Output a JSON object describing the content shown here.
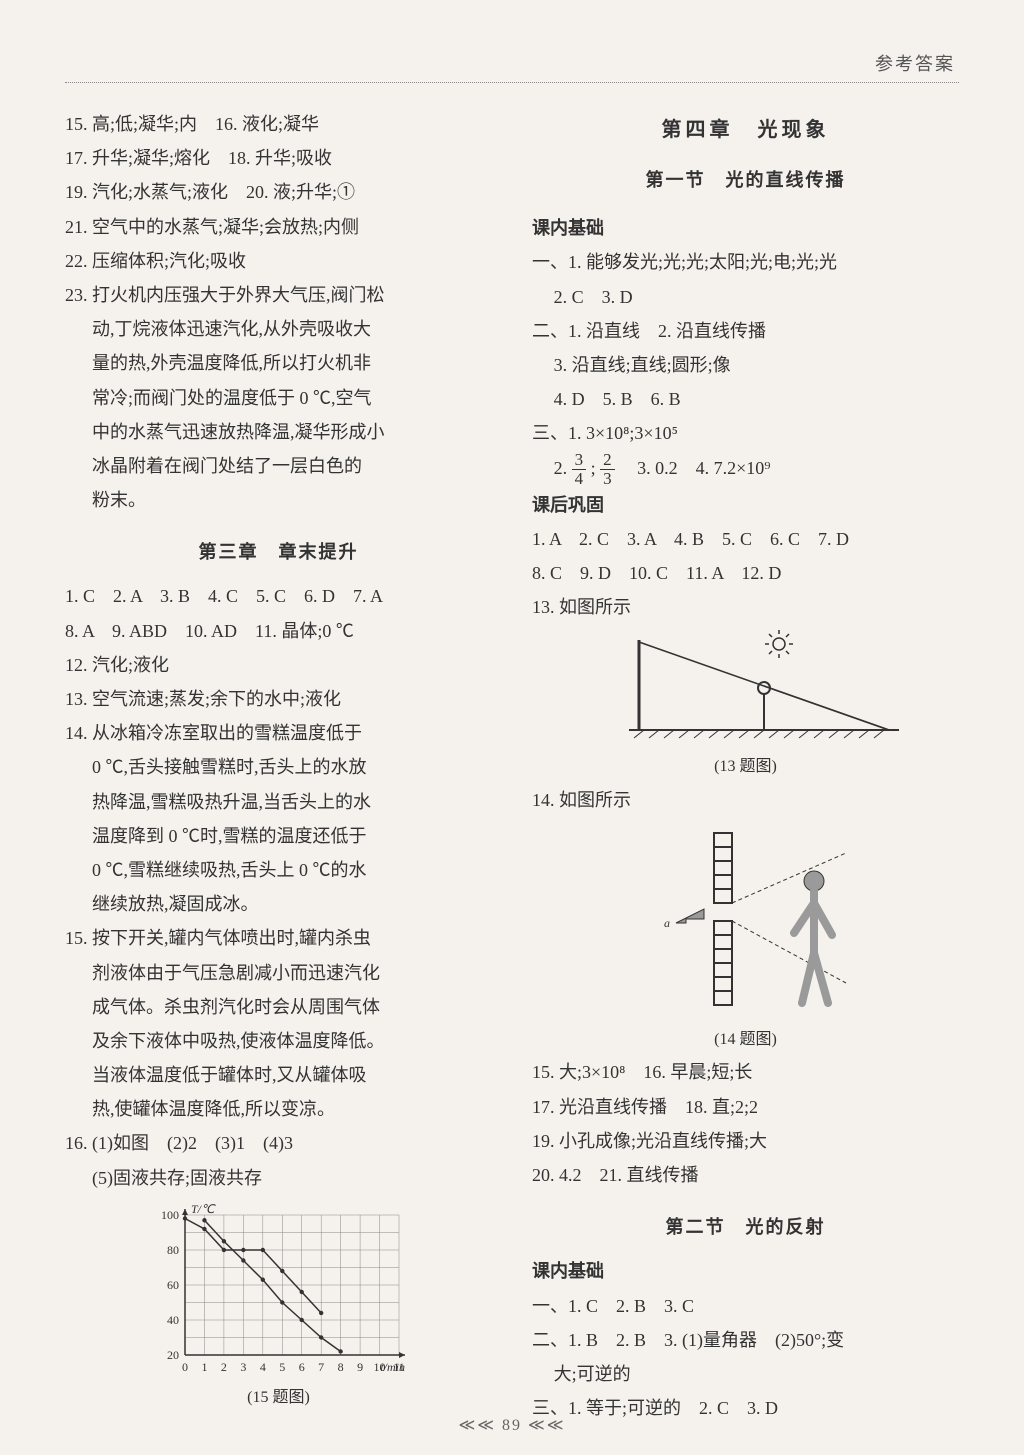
{
  "header": {
    "title": "参考答案"
  },
  "left": {
    "l15": "15. 高;低;凝华;内　16. 液化;凝华",
    "l17": "17. 升华;凝华;熔化　18. 升华;吸收",
    "l19": "19. 汽化;水蒸气;液化　20. 液;升华;①",
    "l21": "21. 空气中的水蒸气;凝华;会放热;内侧",
    "l22": "22. 压缩体积;汽化;吸收",
    "l23a": "23. 打火机内压强大于外界大气压,阀门松",
    "l23b": "动,丁烷液体迅速汽化,从外壳吸收大",
    "l23c": "量的热,外壳温度降低,所以打火机非",
    "l23d": "常冷;而阀门处的温度低于 0 ℃,空气",
    "l23e": "中的水蒸气迅速放热降温,凝华形成小",
    "l23f": "冰晶附着在阀门处结了一层白色的",
    "l23g": "粉末。",
    "sec3_title": "第三章　章末提升",
    "s3_1": "1. C　2. A　3. B　4. C　5. C　6. D　7. A",
    "s3_2": "8. A　9. ABD　10. AD　11. 晶体;0 ℃",
    "s3_12": "12. 汽化;液化",
    "s3_13": "13. 空气流速;蒸发;余下的水中;液化",
    "s3_14a": "14. 从冰箱冷冻室取出的雪糕温度低于",
    "s3_14b": "0 ℃,舌头接触雪糕时,舌头上的水放",
    "s3_14c": "热降温,雪糕吸热升温,当舌头上的水",
    "s3_14d": "温度降到 0 ℃时,雪糕的温度还低于",
    "s3_14e": "0 ℃,雪糕继续吸热,舌头上 0 ℃的水",
    "s3_14f": "继续放热,凝固成冰。",
    "s3_15a": "15. 按下开关,罐内气体喷出时,罐内杀虫",
    "s3_15b": "剂液体由于气压急剧减小而迅速汽化",
    "s3_15c": "成气体。杀虫剂汽化时会从周围气体",
    "s3_15d": "及余下液体中吸热,使液体温度降低。",
    "s3_15e": "当液体温度低于罐体时,又从罐体吸",
    "s3_15f": "热,使罐体温度降低,所以变凉。",
    "s3_16a": "16. (1)如图　(2)2　(3)1　(4)3",
    "s3_16b": "(5)固液共存;固液共存",
    "fig15_caption": "(15 题图)",
    "chart": {
      "y_label": "T/℃",
      "x_label": "t/min",
      "y_ticks": [
        20,
        40,
        60,
        80,
        100
      ],
      "x_ticks": [
        0,
        1,
        2,
        3,
        4,
        5,
        6,
        7,
        8,
        9,
        10,
        11
      ],
      "series_a": [
        [
          0,
          98
        ],
        [
          1,
          92
        ],
        [
          2,
          80
        ],
        [
          3,
          80
        ],
        [
          4,
          80
        ],
        [
          5,
          68
        ],
        [
          6,
          56
        ],
        [
          7,
          44
        ]
      ],
      "series_b": [
        [
          1,
          97
        ],
        [
          2,
          85
        ],
        [
          3,
          74
        ],
        [
          4,
          63
        ],
        [
          5,
          50
        ],
        [
          6,
          40
        ],
        [
          7,
          30
        ],
        [
          8,
          22
        ]
      ],
      "axis_color": "#333",
      "grid_color": "#888",
      "bg_color": "#f5f2ed",
      "line_color": "#333",
      "marker_radius": 2.2,
      "font_size": 12
    }
  },
  "right": {
    "chapter": "第四章　光现象",
    "sec1_title": "第一节　光的直线传播",
    "kenei": "课内基础",
    "r1a": "一、1. 能够发光;光;光;太阳;光;电;光;光",
    "r1b": "2. C　3. D",
    "r2a": "二、1. 沿直线　2. 沿直线传播",
    "r2b": "3. 沿直线;直线;圆形;像",
    "r2c": "4. D　5. B　6. B",
    "r3a": "三、1. 3×10⁸;3×10⁵",
    "r3b_pre": "2. ",
    "r3b_mid": ";",
    "r3b_post": "　3. 0.2　4. 7.2×10⁹",
    "kehou": "课后巩固",
    "k1": "1. A　2. C　3. A　4. B　5. C　6. C　7. D",
    "k2": "8. C　9. D　10. C　11. A　12. D",
    "k13": "13. 如图所示",
    "fig13_caption": "(13 题图)",
    "k14": "14. 如图所示",
    "fig14_caption": "(14 题图)",
    "k15": "15. 大;3×10⁸　16. 早晨;短;长",
    "k17": "17. 光沿直线传播　18. 直;2;2",
    "k19": "19. 小孔成像;光沿直线传播;大",
    "k20": "20. 4.2　21. 直线传播",
    "sec2_title": "第二节　光的反射",
    "kenei2": "课内基础",
    "s2_1": "一、1. C　2. B　3. C",
    "s2_2": "二、1. B　2. B　3. (1)量角器　(2)50°;变",
    "s2_2b": "大;可逆的",
    "s2_3": "三、1. 等于;可逆的　2. C　3. D"
  },
  "footer": {
    "page": "≪≪  89  ≪≪"
  }
}
